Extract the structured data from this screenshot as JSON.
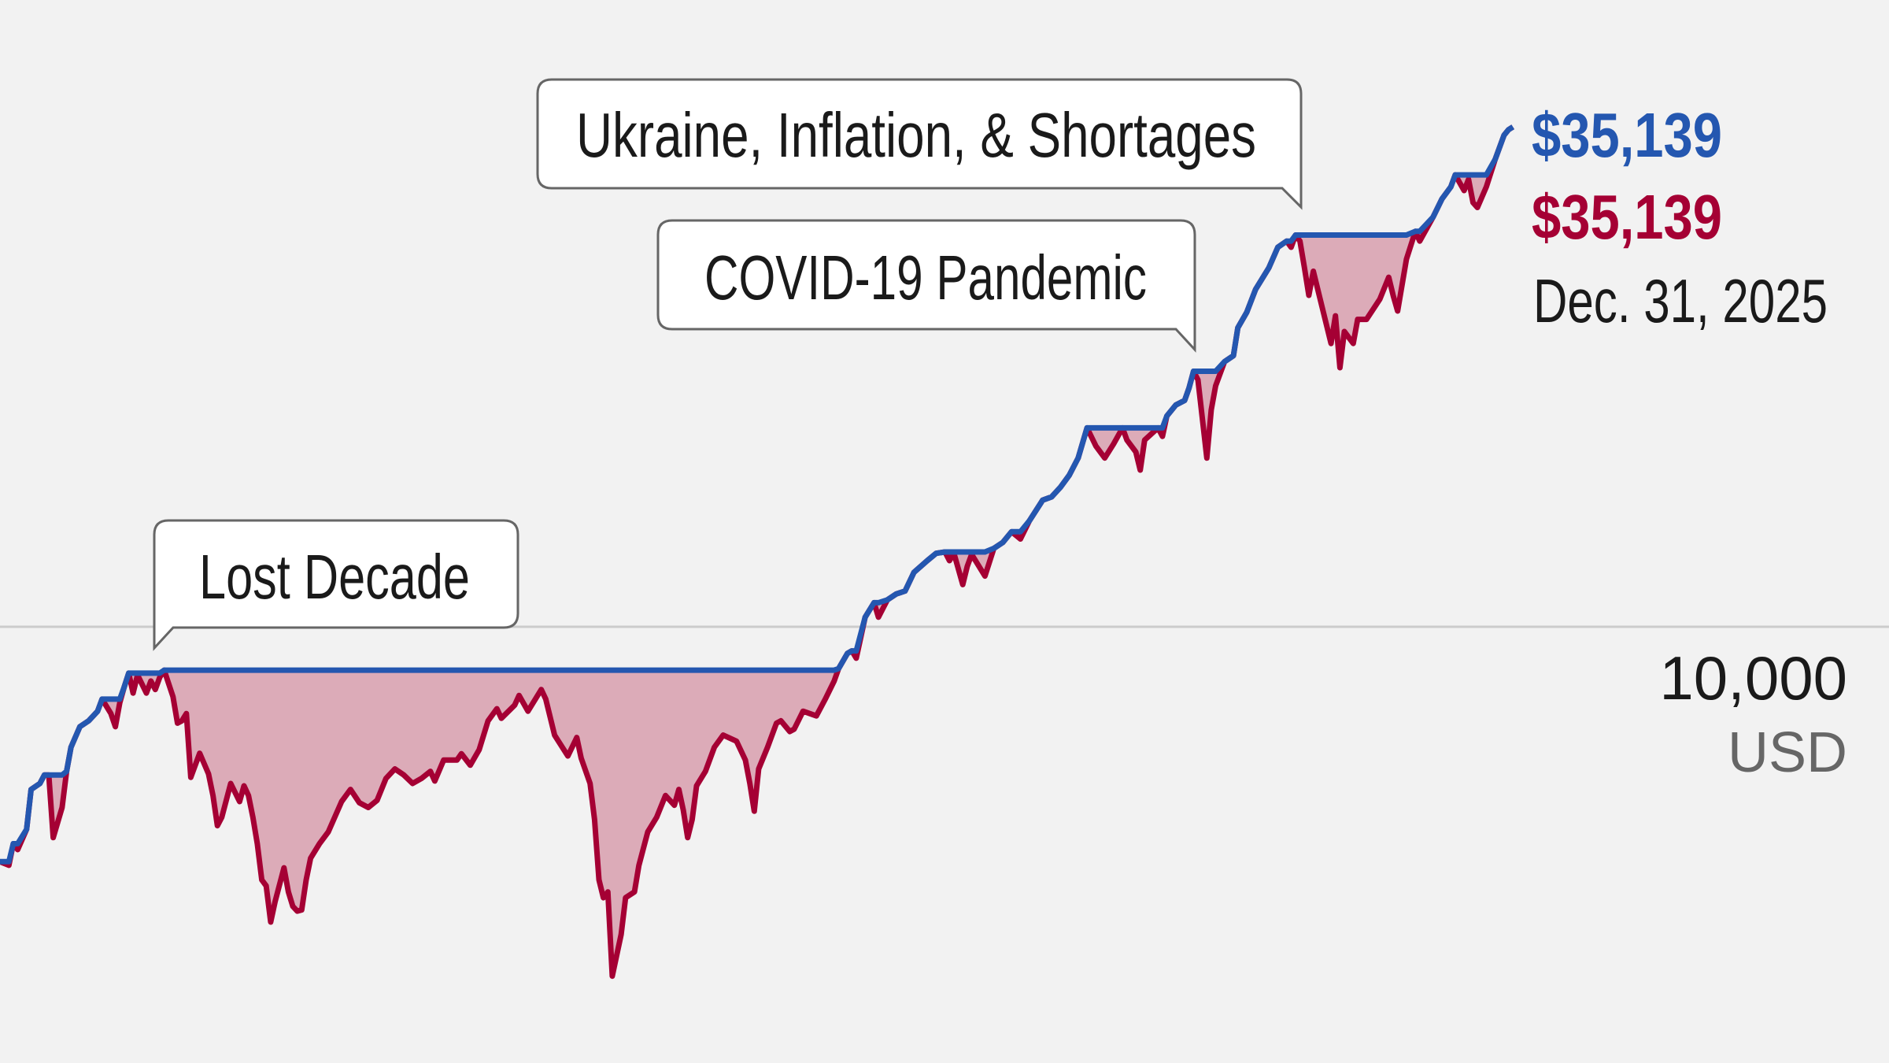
{
  "chart_data": {
    "type": "line",
    "y_scale": "log",
    "grid": "single horizontal gridline at 10,000",
    "colors": {
      "value_line": "#a50034",
      "peak_line": "#2457b0",
      "drawdown_fill": "#dcabb8",
      "background": "#f2f2f2",
      "gridline": "#cccccc"
    },
    "y_ticks": [
      "10,000"
    ],
    "y_unit": "USD",
    "x": [
      "1997-07",
      "1997-09",
      "1997-10",
      "1997-11",
      "1998-01",
      "1998-02",
      "1998-04",
      "1998-05",
      "1998-06",
      "1998-07",
      "1998-09",
      "1998-10",
      "1998-11",
      "1999-01",
      "1999-03",
      "1999-05",
      "1999-06",
      "1999-08",
      "1999-09",
      "1999-10",
      "1999-11",
      "1999-12",
      "2000-01",
      "2000-02",
      "2000-04",
      "2000-05",
      "2000-06",
      "2000-07",
      "2000-08",
      "2000-10",
      "2000-11",
      "2000-12",
      "2001-01",
      "2001-02",
      "2001-04",
      "2001-06",
      "2001-07",
      "2001-08",
      "2001-09",
      "2001-11",
      "2002-01",
      "2002-02",
      "2002-03",
      "2002-04",
      "2002-05",
      "2002-06",
      "2002-07",
      "2002-08",
      "2002-09",
      "2002-11",
      "2002-12",
      "2003-01",
      "2003-02",
      "2003-03",
      "2003-04",
      "2003-05",
      "2003-07",
      "2003-09",
      "2003-12",
      "2004-02",
      "2004-04",
      "2004-06",
      "2004-08",
      "2004-10",
      "2004-12",
      "2005-02",
      "2005-04",
      "2005-06",
      "2005-08",
      "2005-09",
      "2005-11",
      "2006-02",
      "2006-03",
      "2006-05",
      "2006-07",
      "2006-09",
      "2006-11",
      "2006-12",
      "2007-03",
      "2007-04",
      "2007-06",
      "2007-08",
      "2007-09",
      "2007-10",
      "2007-12",
      "2008-03",
      "2008-05",
      "2008-06",
      "2008-08",
      "2008-09",
      "2008-10",
      "2008-11",
      "2008-12",
      "2009-01",
      "2009-03",
      "2009-04",
      "2009-06",
      "2009-07",
      "2009-09",
      "2009-11",
      "2010-01",
      "2010-03",
      "2010-04",
      "2010-05",
      "2010-06",
      "2010-07",
      "2010-08",
      "2010-10",
      "2010-12",
      "2011-02",
      "2011-05",
      "2011-07",
      "2011-08",
      "2011-09",
      "2011-10",
      "2011-12",
      "2012-02",
      "2012-03",
      "2012-05",
      "2012-06",
      "2012-08",
      "2012-11",
      "2013-01",
      "2013-03",
      "2013-04",
      "2013-06",
      "2013-07",
      "2013-08",
      "2013-10",
      "2013-12",
      "2014-01",
      "2014-03",
      "2014-05",
      "2014-07",
      "2014-09",
      "2014-12",
      "2015-02",
      "2015-04",
      "2015-05",
      "2015-06",
      "2015-08",
      "2015-09",
      "2015-10",
      "2016-01",
      "2016-03",
      "2016-05",
      "2016-07",
      "2016-09",
      "2016-11",
      "2017-02",
      "2017-04",
      "2017-06",
      "2017-08",
      "2017-10",
      "2017-12",
      "2018-02",
      "2018-04",
      "2018-06",
      "2018-08",
      "2018-09",
      "2018-11",
      "2018-12",
      "2019-01",
      "2019-04",
      "2019-05",
      "2019-06",
      "2019-08",
      "2019-10",
      "2019-11",
      "2019-12",
      "2020-01",
      "2020-03",
      "2020-04",
      "2020-05",
      "2020-07",
      "2020-09",
      "2020-10",
      "2020-12",
      "2021-02",
      "2021-05",
      "2021-07",
      "2021-09",
      "2021-10",
      "2021-11",
      "2021-12",
      "2022-01",
      "2022-02",
      "2022-03",
      "2022-05",
      "2022-07",
      "2022-08",
      "2022-09",
      "2022-10",
      "2022-12",
      "2023-01",
      "2023-03",
      "2023-06",
      "2023-08",
      "2023-09",
      "2023-10",
      "2023-12",
      "2024-02",
      "2024-03",
      "2024-06",
      "2024-08",
      "2024-10",
      "2024-11",
      "2025-01",
      "2025-02",
      "2025-03",
      "2025-04",
      "2025-06",
      "2025-08",
      "2025-10",
      "2025-11",
      "2025-12"
    ],
    "series": [
      {
        "values": [
          5540,
          5490,
          5796,
          5710,
          6010,
          6643,
          6744,
          6890,
          6890,
          5885,
          6348,
          6952,
          7386,
          7778,
          7895,
          8088,
          8337,
          8040,
          7778,
          8262,
          8594,
          8900,
          8465,
          8858,
          8465,
          8724,
          8541,
          8805,
          8966,
          8388,
          7848,
          7895,
          8040,
          6848,
          7276,
          6910,
          6543,
          6065,
          6195,
          6744,
          6444,
          6704,
          6543,
          6195,
          5796,
          5292,
          5213,
          4759,
          5010,
          5455,
          5134,
          4952,
          4892,
          4907,
          5292,
          5589,
          5796,
          5971,
          6444,
          6643,
          6424,
          6348,
          6464,
          6830,
          6995,
          6890,
          6744,
          6830,
          6952,
          6785,
          7153,
          7153,
          7268,
          7060,
          7342,
          7895,
          8137,
          7945,
          8212,
          8414,
          8088,
          8388,
          8541,
          8337,
          7615,
          7226,
          7570,
          7186,
          6744,
          6158,
          5292,
          5060,
          5134,
          4154,
          4615,
          5060,
          5134,
          5487,
          5971,
          6195,
          6543,
          6384,
          6643,
          6308,
          5885,
          6158,
          6704,
          6952,
          7386,
          7615,
          7500,
          7153,
          6744,
          6290,
          6995,
          7386,
          7848,
          7895,
          7685,
          7730,
          8088,
          7992,
          8337,
          8724,
          9000,
          9353,
          9412,
          9240,
          10245,
          10625,
          10245,
          10700,
          10860,
          10940,
          11466,
          11810,
          12030,
          12070,
          11810,
          12030,
          11120,
          11640,
          11995,
          11360,
          12180,
          12360,
          12700,
          12470,
          13050,
          13750,
          13860,
          14200,
          14640,
          15284,
          16490,
          15755,
          15284,
          15840,
          16490,
          15990,
          15520,
          14830,
          15995,
          16490,
          16140,
          16990,
          17465,
          17670,
          18230,
          19010,
          18610,
          15284,
          17254,
          18331,
          19477,
          19770,
          21210,
          22050,
          23361,
          24670,
          25970,
          26371,
          25970,
          26780,
          26371,
          24670,
          23010,
          24446,
          22330,
          20386,
          21856,
          19180,
          21010,
          20386,
          21660,
          21660,
          22790,
          24080,
          23010,
          22120,
          25200,
          27030,
          26370,
          28020,
          29320,
          30230,
          31150,
          29950,
          30800,
          29055,
          28700,
          30230,
          32400,
          34420,
          34900,
          35139
        ]
      }
    ],
    "annotations": [
      {
        "label": "Lost Decade"
      },
      {
        "label": "COVID-19 Pandemic"
      },
      {
        "label": "Ukraine, Inflation, & Shortages"
      }
    ],
    "end_labels": {
      "peak_value": "$35,139",
      "current_value": "$35,139",
      "date": "Dec. 31, 2025"
    }
  }
}
